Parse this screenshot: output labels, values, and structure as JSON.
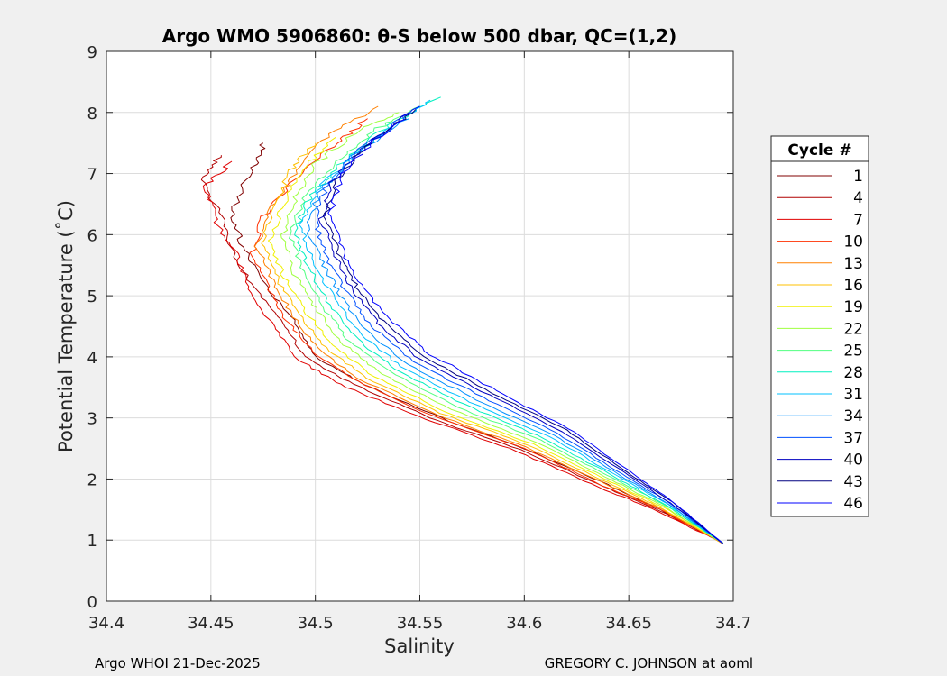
{
  "chart_data": {
    "type": "line",
    "title": "Argo WMO 5906860: θ-S below 500 dbar,  QC=(1,2)",
    "xlabel": "Salinity",
    "ylabel": "Potential Temperature (˚C)",
    "xlim": [
      34.4,
      34.7
    ],
    "ylim": [
      0,
      9
    ],
    "xticks": [
      34.4,
      34.45,
      34.5,
      34.55,
      34.6,
      34.65,
      34.7
    ],
    "xtick_labels": [
      "34.4",
      "34.45",
      "34.5",
      "34.55",
      "34.6",
      "34.65",
      "34.7"
    ],
    "yticks": [
      0,
      1,
      2,
      3,
      4,
      5,
      6,
      7,
      8,
      9
    ],
    "ytick_labels": [
      "0",
      "1",
      "2",
      "3",
      "4",
      "5",
      "6",
      "7",
      "8",
      "9"
    ],
    "grid": true,
    "legend_title": "Cycle #",
    "legend_placement": "right-outside",
    "legend_entries": [
      {
        "label": "1",
        "color": "#800000"
      },
      {
        "label": "4",
        "color": "#b00000"
      },
      {
        "label": "7",
        "color": "#e00000"
      },
      {
        "label": "10",
        "color": "#ff3000"
      },
      {
        "label": "13",
        "color": "#ff8000"
      },
      {
        "label": "16",
        "color": "#ffc000"
      },
      {
        "label": "19",
        "color": "#f0f000"
      },
      {
        "label": "22",
        "color": "#a0ff40"
      },
      {
        "label": "25",
        "color": "#50ff80"
      },
      {
        "label": "28",
        "color": "#00f0c0"
      },
      {
        "label": "31",
        "color": "#00c0ff"
      },
      {
        "label": "34",
        "color": "#0090ff"
      },
      {
        "label": "37",
        "color": "#0050ff"
      },
      {
        "label": "40",
        "color": "#0000c0"
      },
      {
        "label": "43",
        "color": "#000080"
      },
      {
        "label": "46",
        "color": "#0000ff"
      }
    ],
    "series": [
      {
        "name": "1",
        "color": "#800000",
        "points": [
          [
            34.695,
            0.95
          ],
          [
            34.665,
            1.5
          ],
          [
            34.64,
            1.9
          ],
          [
            34.6,
            2.5
          ],
          [
            34.56,
            3.0
          ],
          [
            34.52,
            3.6
          ],
          [
            34.5,
            4.0
          ],
          [
            34.49,
            4.6
          ],
          [
            34.475,
            5.2
          ],
          [
            34.465,
            5.8
          ],
          [
            34.46,
            6.4
          ],
          [
            34.47,
            7.1
          ],
          [
            34.475,
            7.5
          ]
        ]
      },
      {
        "name": "4",
        "color": "#b00000",
        "points": [
          [
            34.695,
            0.95
          ],
          [
            34.665,
            1.48
          ],
          [
            34.638,
            1.88
          ],
          [
            34.598,
            2.48
          ],
          [
            34.555,
            3.0
          ],
          [
            34.518,
            3.55
          ],
          [
            34.495,
            4.0
          ],
          [
            34.485,
            4.55
          ],
          [
            34.47,
            5.15
          ],
          [
            34.46,
            5.75
          ],
          [
            34.455,
            6.3
          ],
          [
            34.445,
            6.9
          ],
          [
            34.455,
            7.3
          ]
        ]
      },
      {
        "name": "7",
        "color": "#e00000",
        "points": [
          [
            34.695,
            0.95
          ],
          [
            34.664,
            1.47
          ],
          [
            34.636,
            1.86
          ],
          [
            34.597,
            2.45
          ],
          [
            34.553,
            2.98
          ],
          [
            34.515,
            3.5
          ],
          [
            34.492,
            3.95
          ],
          [
            34.48,
            4.5
          ],
          [
            34.468,
            5.1
          ],
          [
            34.462,
            5.7
          ],
          [
            34.452,
            6.25
          ],
          [
            34.448,
            6.8
          ],
          [
            34.46,
            7.2
          ]
        ]
      },
      {
        "name": "10",
        "color": "#ff3000",
        "points": [
          [
            34.695,
            0.95
          ],
          [
            34.665,
            1.5
          ],
          [
            34.637,
            1.9
          ],
          [
            34.6,
            2.5
          ],
          [
            34.557,
            3.02
          ],
          [
            34.52,
            3.6
          ],
          [
            34.5,
            4.05
          ],
          [
            34.486,
            4.6
          ],
          [
            34.478,
            5.1
          ],
          [
            34.47,
            5.7
          ],
          [
            34.475,
            6.3
          ],
          [
            34.49,
            6.9
          ],
          [
            34.51,
            7.5
          ],
          [
            34.525,
            7.9
          ]
        ]
      },
      {
        "name": "13",
        "color": "#ff8000",
        "points": [
          [
            34.695,
            0.95
          ],
          [
            34.666,
            1.5
          ],
          [
            34.639,
            1.92
          ],
          [
            34.601,
            2.52
          ],
          [
            34.558,
            3.05
          ],
          [
            34.522,
            3.62
          ],
          [
            34.502,
            4.1
          ],
          [
            34.49,
            4.65
          ],
          [
            34.48,
            5.2
          ],
          [
            34.472,
            5.8
          ],
          [
            34.478,
            6.4
          ],
          [
            34.49,
            7.0
          ],
          [
            34.505,
            7.6
          ],
          [
            34.53,
            8.1
          ]
        ]
      },
      {
        "name": "16",
        "color": "#ffc000",
        "points": [
          [
            34.695,
            0.95
          ],
          [
            34.666,
            1.52
          ],
          [
            34.64,
            1.94
          ],
          [
            34.602,
            2.55
          ],
          [
            34.56,
            3.08
          ],
          [
            34.525,
            3.65
          ],
          [
            34.505,
            4.15
          ],
          [
            34.492,
            4.7
          ],
          [
            34.482,
            5.25
          ],
          [
            34.475,
            5.85
          ],
          [
            34.48,
            6.45
          ],
          [
            34.488,
            7.05
          ],
          [
            34.5,
            7.5
          ]
        ]
      },
      {
        "name": "19",
        "color": "#f0f000",
        "points": [
          [
            34.695,
            0.95
          ],
          [
            34.667,
            1.53
          ],
          [
            34.641,
            1.96
          ],
          [
            34.604,
            2.57
          ],
          [
            34.562,
            3.1
          ],
          [
            34.528,
            3.68
          ],
          [
            34.508,
            4.2
          ],
          [
            34.495,
            4.75
          ],
          [
            34.485,
            5.3
          ],
          [
            34.478,
            5.9
          ],
          [
            34.485,
            6.5
          ],
          [
            34.495,
            7.1
          ],
          [
            34.51,
            7.6
          ]
        ]
      },
      {
        "name": "22",
        "color": "#a0ff40",
        "points": [
          [
            34.695,
            0.95
          ],
          [
            34.667,
            1.55
          ],
          [
            34.642,
            1.98
          ],
          [
            34.606,
            2.6
          ],
          [
            34.565,
            3.14
          ],
          [
            34.532,
            3.72
          ],
          [
            34.512,
            4.25
          ],
          [
            34.5,
            4.8
          ],
          [
            34.49,
            5.35
          ],
          [
            34.484,
            5.95
          ],
          [
            34.49,
            6.55
          ],
          [
            34.5,
            7.15
          ],
          [
            34.52,
            7.7
          ],
          [
            34.54,
            8.0
          ]
        ]
      },
      {
        "name": "25",
        "color": "#50ff80",
        "points": [
          [
            34.695,
            0.95
          ],
          [
            34.668,
            1.56
          ],
          [
            34.643,
            2.0
          ],
          [
            34.608,
            2.63
          ],
          [
            34.568,
            3.18
          ],
          [
            34.535,
            3.76
          ],
          [
            34.515,
            4.3
          ],
          [
            34.503,
            4.85
          ],
          [
            34.494,
            5.4
          ],
          [
            34.488,
            6.0
          ],
          [
            34.495,
            6.6
          ],
          [
            34.51,
            7.2
          ],
          [
            34.53,
            7.75
          ],
          [
            34.55,
            8.1
          ]
        ]
      },
      {
        "name": "28",
        "color": "#00f0c0",
        "points": [
          [
            34.695,
            0.95
          ],
          [
            34.668,
            1.57
          ],
          [
            34.644,
            2.02
          ],
          [
            34.61,
            2.66
          ],
          [
            34.571,
            3.22
          ],
          [
            34.538,
            3.8
          ],
          [
            34.518,
            4.35
          ],
          [
            34.506,
            4.9
          ],
          [
            34.497,
            5.45
          ],
          [
            34.49,
            6.05
          ],
          [
            34.498,
            6.65
          ],
          [
            34.515,
            7.25
          ],
          [
            34.535,
            7.8
          ],
          [
            34.56,
            8.25
          ]
        ]
      },
      {
        "name": "31",
        "color": "#00c0ff",
        "points": [
          [
            34.695,
            0.95
          ],
          [
            34.669,
            1.58
          ],
          [
            34.645,
            2.04
          ],
          [
            34.612,
            2.69
          ],
          [
            34.574,
            3.26
          ],
          [
            34.541,
            3.84
          ],
          [
            34.521,
            4.4
          ],
          [
            34.509,
            4.95
          ],
          [
            34.5,
            5.5
          ],
          [
            34.493,
            6.1
          ],
          [
            34.5,
            6.7
          ],
          [
            34.518,
            7.3
          ],
          [
            34.54,
            7.85
          ],
          [
            34.555,
            8.2
          ]
        ]
      },
      {
        "name": "34",
        "color": "#0090ff",
        "points": [
          [
            34.695,
            0.95
          ],
          [
            34.669,
            1.59
          ],
          [
            34.646,
            2.06
          ],
          [
            34.614,
            2.72
          ],
          [
            34.577,
            3.3
          ],
          [
            34.544,
            3.88
          ],
          [
            34.524,
            4.45
          ],
          [
            34.512,
            5.0
          ],
          [
            34.503,
            5.55
          ],
          [
            34.496,
            6.15
          ],
          [
            34.503,
            6.75
          ],
          [
            34.52,
            7.35
          ],
          [
            34.545,
            7.9
          ]
        ]
      },
      {
        "name": "37",
        "color": "#0050ff",
        "points": [
          [
            34.695,
            0.95
          ],
          [
            34.67,
            1.6
          ],
          [
            34.647,
            2.08
          ],
          [
            34.616,
            2.75
          ],
          [
            34.58,
            3.34
          ],
          [
            34.547,
            3.92
          ],
          [
            34.527,
            4.5
          ],
          [
            34.515,
            5.05
          ],
          [
            34.506,
            5.6
          ],
          [
            34.5,
            6.2
          ],
          [
            34.505,
            6.8
          ],
          [
            34.522,
            7.4
          ],
          [
            34.542,
            7.95
          ]
        ]
      },
      {
        "name": "40",
        "color": "#0000c0",
        "points": [
          [
            34.695,
            0.95
          ],
          [
            34.67,
            1.61
          ],
          [
            34.648,
            2.1
          ],
          [
            34.618,
            2.78
          ],
          [
            34.583,
            3.38
          ],
          [
            34.55,
            3.96
          ],
          [
            34.53,
            4.55
          ],
          [
            34.518,
            5.1
          ],
          [
            34.509,
            5.65
          ],
          [
            34.503,
            6.25
          ],
          [
            34.508,
            6.85
          ],
          [
            34.524,
            7.45
          ],
          [
            34.545,
            8.0
          ]
        ]
      },
      {
        "name": "43",
        "color": "#000080",
        "points": [
          [
            34.695,
            0.95
          ],
          [
            34.671,
            1.62
          ],
          [
            34.649,
            2.12
          ],
          [
            34.62,
            2.8
          ],
          [
            34.585,
            3.41
          ],
          [
            34.552,
            4.0
          ],
          [
            34.532,
            4.58
          ],
          [
            34.52,
            5.14
          ],
          [
            34.511,
            5.7
          ],
          [
            34.505,
            6.3
          ],
          [
            34.51,
            6.9
          ],
          [
            34.526,
            7.5
          ],
          [
            34.548,
            8.05
          ]
        ]
      },
      {
        "name": "46",
        "color": "#0000ff",
        "points": [
          [
            34.695,
            0.95
          ],
          [
            34.671,
            1.63
          ],
          [
            34.65,
            2.14
          ],
          [
            34.621,
            2.83
          ],
          [
            34.587,
            3.44
          ],
          [
            34.555,
            4.04
          ],
          [
            34.535,
            4.62
          ],
          [
            34.522,
            5.18
          ],
          [
            34.513,
            5.74
          ],
          [
            34.507,
            6.35
          ],
          [
            34.512,
            6.95
          ],
          [
            34.528,
            7.55
          ],
          [
            34.55,
            8.1
          ]
        ]
      }
    ]
  },
  "footer": {
    "left": "Argo WHOI 21-Dec-2025",
    "right": "GREGORY C. JOHNSON at aoml"
  }
}
